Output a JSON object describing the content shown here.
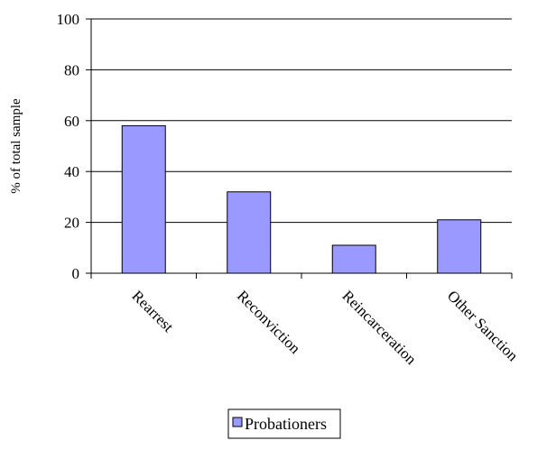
{
  "chart_data": {
    "type": "bar",
    "categories": [
      "Rearrest",
      "Reconviction",
      "Reincarceration",
      "Other Sanction"
    ],
    "series": [
      {
        "name": "Probationers",
        "values": [
          58,
          32,
          11,
          21
        ],
        "color": "#9999ff"
      }
    ],
    "ylabel": "% of total sample",
    "ylim": [
      0,
      100
    ],
    "yticks": [
      0,
      20,
      40,
      60,
      80,
      100
    ],
    "grid": true,
    "legend_position": "bottom-center"
  }
}
